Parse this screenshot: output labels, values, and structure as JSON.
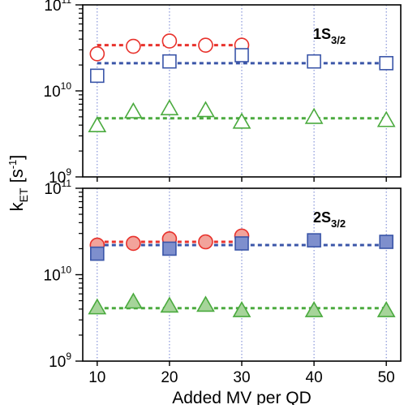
{
  "chart_data": {
    "type": "scatter",
    "log_y": true,
    "shared_x": {
      "label": "Added MV per QD",
      "ticks": [
        10,
        20,
        30,
        40,
        50
      ],
      "xlim": [
        8,
        52
      ]
    },
    "ylabel": {
      "base": "k",
      "sub": "ET",
      "unit_open": " [s",
      "unit_sup": "-1",
      "unit_close": "]"
    },
    "panels": [
      {
        "label_base": "1S",
        "label_sub": "3/2",
        "ylim": [
          1000000000.0,
          100000000000.0
        ],
        "y_ticks": [
          {
            "value": 1000000000.0,
            "base": "10",
            "exp": "9"
          },
          {
            "value": 10000000000.0,
            "base": "10",
            "exp": "10"
          },
          {
            "value": 100000000000.0,
            "base": "10",
            "exp": "11"
          }
        ],
        "grid_x": true,
        "series": [
          {
            "marker": "circle",
            "filled": false,
            "color": "#e8322c",
            "x": [
              10,
              15,
              20,
              25,
              30
            ],
            "y": [
              27000000000.0,
              33000000000.0,
              38000000000.0,
              34000000000.0,
              34000000000.0
            ],
            "fit": {
              "value": 34000000000.0,
              "x_range": [
                10,
                30
              ],
              "color": "#e8322c"
            }
          },
          {
            "marker": "square",
            "filled": false,
            "color": "#3a55a8",
            "x": [
              10,
              20,
              30,
              40,
              50
            ],
            "y": [
              15000000000.0,
              22000000000.0,
              26000000000.0,
              22000000000.0,
              21000000000.0
            ],
            "fit": {
              "value": 21000000000.0,
              "x_range": [
                10,
                50
              ],
              "color": "#3a55a8"
            }
          },
          {
            "marker": "triangle",
            "filled": false,
            "color": "#4aaa3e",
            "x": [
              10,
              15,
              20,
              25,
              30,
              40,
              50
            ],
            "y": [
              4000000000.0,
              5800000000.0,
              6300000000.0,
              6000000000.0,
              4400000000.0,
              5000000000.0,
              4600000000.0
            ],
            "fit": {
              "value": 4800000000.0,
              "x_range": [
                10,
                50
              ],
              "color": "#4aaa3e"
            }
          }
        ]
      },
      {
        "label_base": "2S",
        "label_sub": "3/2",
        "ylim": [
          1000000000.0,
          100000000000.0
        ],
        "y_ticks": [
          {
            "value": 1000000000.0,
            "base": "10",
            "exp": "9"
          },
          {
            "value": 10000000000.0,
            "base": "10",
            "exp": "10"
          },
          {
            "value": 100000000000.0,
            "base": "10",
            "exp": "11"
          }
        ],
        "grid_x": true,
        "series": [
          {
            "marker": "circle",
            "filled": true,
            "color": "#e8322c",
            "fill": "#f2a39b",
            "x": [
              10,
              15,
              20,
              25,
              30
            ],
            "y": [
              22000000000.0,
              23000000000.0,
              26000000000.0,
              24000000000.0,
              28000000000.0
            ],
            "fit": {
              "value": 24000000000.0,
              "x_range": [
                10,
                30
              ],
              "color": "#e8322c"
            }
          },
          {
            "marker": "square",
            "filled": true,
            "color": "#3a55a8",
            "fill": "#7e8fcd",
            "x": [
              10,
              20,
              30,
              40,
              50
            ],
            "y": [
              17500000000.0,
              20000000000.0,
              23000000000.0,
              25000000000.0,
              24000000000.0
            ],
            "fit": {
              "value": 22000000000.0,
              "x_range": [
                10,
                50
              ],
              "color": "#3a55a8"
            }
          },
          {
            "marker": "triangle",
            "filled": true,
            "color": "#4aaa3e",
            "fill": "#a6d49a",
            "x": [
              10,
              15,
              20,
              25,
              30,
              40,
              50
            ],
            "y": [
              4200000000.0,
              4900000000.0,
              4400000000.0,
              4500000000.0,
              3900000000.0,
              3900000000.0,
              3900000000.0
            ],
            "fit": {
              "value": 4100000000.0,
              "x_range": [
                10,
                50
              ],
              "color": "#4aaa3e"
            }
          }
        ]
      }
    ]
  }
}
